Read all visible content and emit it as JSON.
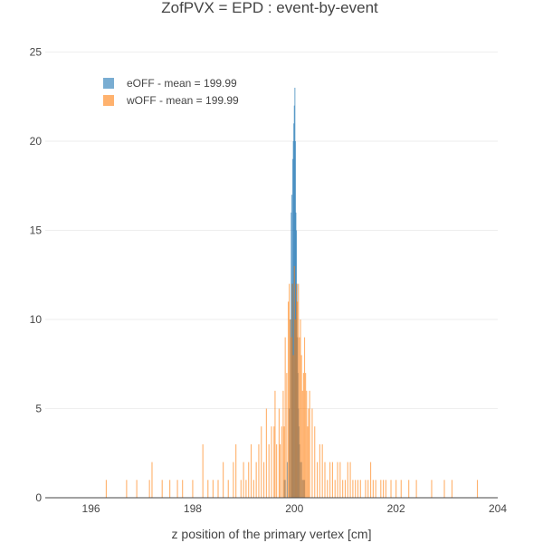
{
  "chart_data": {
    "type": "bar",
    "title": "ZofPVX = EPD : event-by-event",
    "xlabel": "z position of the primary vertex [cm]",
    "ylabel": "",
    "xlim": [
      195.1,
      204.0
    ],
    "ylim": [
      0,
      26.5
    ],
    "xticks": [
      196,
      198,
      200,
      202,
      204
    ],
    "yticks": [
      0,
      5,
      10,
      15,
      20,
      25
    ],
    "grid": true,
    "legend_placement": "top-left",
    "bin_width": 0.02,
    "barmode": "overlay",
    "series": [
      {
        "name": "eOFF - mean = 199.99",
        "color": "#1f77b4",
        "opacity": 0.6,
        "x": [
          199.8,
          199.82,
          199.86,
          199.9,
          199.92,
          199.94,
          199.95,
          199.96,
          199.97,
          199.98,
          199.99,
          200.0,
          200.01,
          200.02,
          200.03,
          200.04,
          200.05,
          200.06,
          200.07,
          200.08,
          200.09,
          200.1,
          200.12,
          200.14,
          200.16,
          200.18,
          200.2
        ],
        "values": [
          1,
          1,
          2,
          5,
          10,
          16,
          17,
          12,
          19,
          20,
          21,
          22,
          23,
          20,
          16,
          15,
          12,
          9,
          7,
          5,
          4,
          3,
          2,
          2,
          1,
          1,
          1
        ]
      },
      {
        "name": "wOFF - mean = 199.99",
        "color": "#ff7f0e",
        "opacity": 0.6,
        "x": [
          196.3,
          196.7,
          196.9,
          197.15,
          197.2,
          197.4,
          197.55,
          197.7,
          197.8,
          198.0,
          198.2,
          198.3,
          198.4,
          198.5,
          198.6,
          198.7,
          198.8,
          198.85,
          198.95,
          199.0,
          199.05,
          199.1,
          199.15,
          199.2,
          199.25,
          199.3,
          199.35,
          199.4,
          199.45,
          199.5,
          199.55,
          199.6,
          199.62,
          199.65,
          199.7,
          199.72,
          199.75,
          199.78,
          199.8,
          199.82,
          199.85,
          199.88,
          199.9,
          199.92,
          199.94,
          199.96,
          199.98,
          200.0,
          200.02,
          200.04,
          200.06,
          200.08,
          200.1,
          200.12,
          200.14,
          200.16,
          200.18,
          200.2,
          200.22,
          200.24,
          200.26,
          200.28,
          200.3,
          200.35,
          200.4,
          200.45,
          200.5,
          200.55,
          200.6,
          200.65,
          200.7,
          200.75,
          200.8,
          200.85,
          200.9,
          200.95,
          201.0,
          201.05,
          201.1,
          201.15,
          201.2,
          201.25,
          201.3,
          201.4,
          201.45,
          201.5,
          201.55,
          201.6,
          201.7,
          201.75,
          201.8,
          201.9,
          202.0,
          202.1,
          202.25,
          202.4,
          202.7,
          202.95,
          203.1,
          203.6
        ],
        "values": [
          1,
          1,
          1,
          1,
          2,
          1,
          1,
          1,
          1,
          1,
          3,
          1,
          1,
          1,
          2,
          1,
          2,
          3,
          1,
          2,
          1,
          2,
          3,
          1,
          2,
          3,
          4,
          2,
          5,
          3,
          4,
          4,
          6,
          3,
          5,
          3,
          4,
          6,
          4,
          9,
          7,
          11,
          12,
          10,
          9,
          12,
          8,
          13,
          10,
          12,
          11,
          12,
          9,
          10,
          8,
          6,
          7,
          9,
          7,
          6,
          4,
          5,
          6,
          5,
          4,
          2,
          3,
          3,
          2,
          1,
          2,
          2,
          1,
          2,
          2,
          1,
          1,
          2,
          2,
          1,
          1,
          1,
          1,
          1,
          1,
          2,
          1,
          1,
          1,
          1,
          1,
          1,
          1,
          1,
          1,
          1,
          1,
          1,
          1,
          1
        ]
      }
    ]
  }
}
